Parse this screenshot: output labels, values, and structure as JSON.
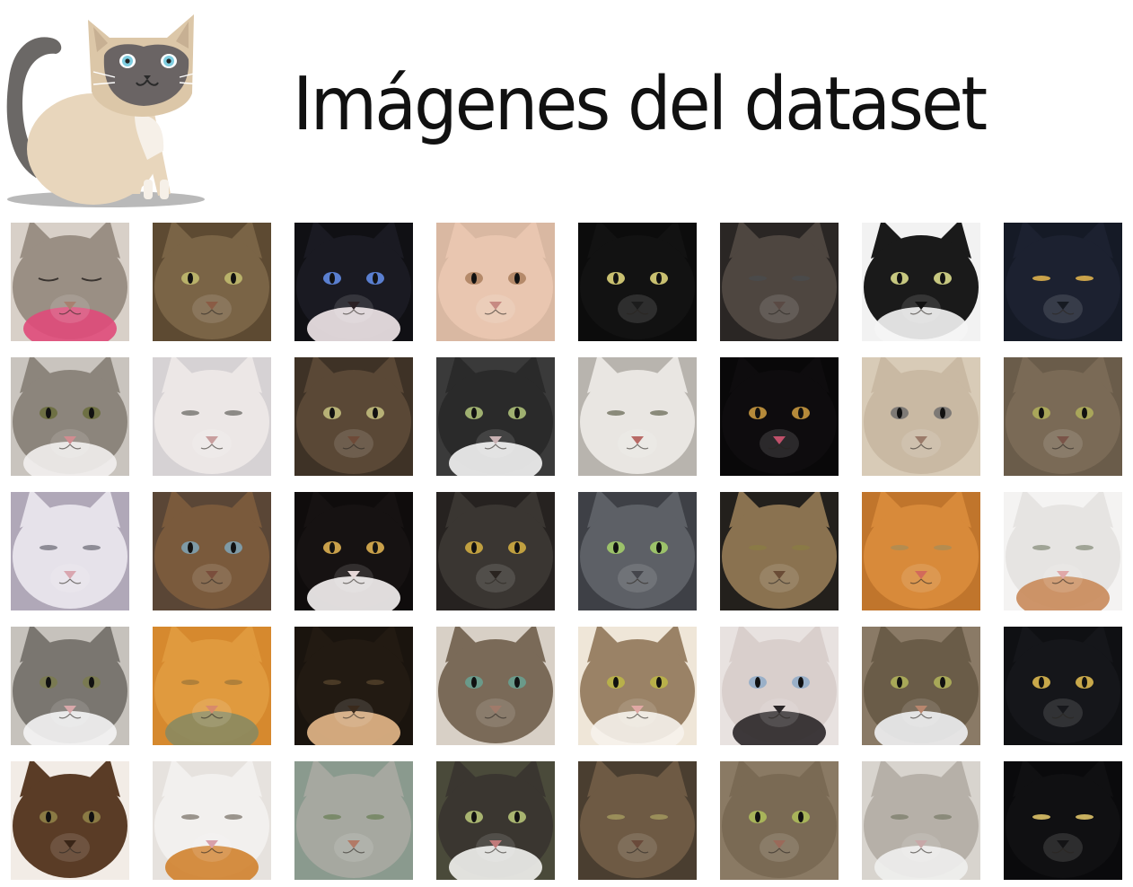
{
  "title": "Imágenes del dataset",
  "logo": {
    "icon": "siamese-cat-icon"
  },
  "grid": {
    "rows": 5,
    "columns": 8,
    "tiles": [
      {
        "fur": "#9a8f84",
        "bg": "#d8d0c8",
        "eye": "#6b6b5a",
        "nose": "#a98070",
        "eyes": "closed",
        "accent": "#e04a7a"
      },
      {
        "fur": "#7a6446",
        "bg": "#5d4a32",
        "eye": "#b9b26a",
        "nose": "#8a5c45",
        "eyes": "open",
        "accent": null
      },
      {
        "fur": "#1a1a22",
        "bg": "#101014",
        "eye": "#5a7fd0",
        "nose": "#2a2024",
        "eyes": "open",
        "accent": "#f2e8ea"
      },
      {
        "fur": "#e9c6b0",
        "bg": "#d9b8a2",
        "eye": "#b58a6a",
        "nose": "#c78a82",
        "eyes": "open",
        "accent": null
      },
      {
        "fur": "#121212",
        "bg": "#0c0c0c",
        "eye": "#c9c070",
        "nose": "#1c1c1c",
        "eyes": "open",
        "accent": null
      },
      {
        "fur": "#4e4640",
        "bg": "#2a2624",
        "eye": "#4a4a4a",
        "nose": "#5a4a44",
        "eyes": "squint",
        "accent": null
      },
      {
        "fur": "#1a1a1a",
        "bg": "#f2f2f2",
        "eye": "#c7c880",
        "nose": "#111111",
        "eyes": "open",
        "accent": "#f5f5f5"
      },
      {
        "fur": "#1c2130",
        "bg": "#151a26",
        "eye": "#c9a24a",
        "nose": "#161a22",
        "eyes": "squint",
        "accent": null
      },
      {
        "fur": "#8c857c",
        "bg": "#c9c4be",
        "eye": "#6e7044",
        "nose": "#d08c90",
        "eyes": "open",
        "accent": "#f2f0ee"
      },
      {
        "fur": "#ece7e6",
        "bg": "#d6d2d4",
        "eye": "#8c8a86",
        "nose": "#c89e9e",
        "eyes": "squint",
        "accent": null
      },
      {
        "fur": "#5a4836",
        "bg": "#3e3226",
        "eye": "#b7b176",
        "nose": "#6e4a38",
        "eyes": "open",
        "accent": null
      },
      {
        "fur": "#2a2a2a",
        "bg": "#3a3a3a",
        "eye": "#9fb070",
        "nose": "#c9b2b4",
        "eyes": "open",
        "accent": "#f4f4f4"
      },
      {
        "fur": "#e9e6e2",
        "bg": "#b8b4ae",
        "eye": "#8a8a7a",
        "nose": "#b86a66",
        "eyes": "squint",
        "accent": null
      },
      {
        "fur": "#0e0c0e",
        "bg": "#090809",
        "eye": "#b58a3a",
        "nose": "#c0506a",
        "eyes": "open",
        "accent": null
      },
      {
        "fur": "#c9b9a3",
        "bg": "#d8cbb7",
        "eye": "#7e7a76",
        "nose": "#9b7b6a",
        "eyes": "open",
        "accent": null
      },
      {
        "fur": "#7a6a56",
        "bg": "#6a5c4a",
        "eye": "#a9a65a",
        "nose": "#7a5448",
        "eyes": "open",
        "accent": null
      },
      {
        "fur": "#e6e2ea",
        "bg": "#b0a8b8",
        "eye": "#8e8c96",
        "nose": "#d9a6b0",
        "eyes": "squint",
        "accent": null
      },
      {
        "fur": "#7a5a3c",
        "bg": "#5a4636",
        "eye": "#7e9aa6",
        "nose": "#7a4e3c",
        "eyes": "open",
        "accent": null
      },
      {
        "fur": "#161212",
        "bg": "#0f0c0c",
        "eye": "#c9a04a",
        "nose": "#e6d8d8",
        "eyes": "open",
        "accent": "#f6f3f3"
      },
      {
        "fur": "#3a3632",
        "bg": "#262220",
        "eye": "#c0a040",
        "nose": "#2a2420",
        "eyes": "open",
        "accent": null
      },
      {
        "fur": "#5d6066",
        "bg": "#3e4046",
        "eye": "#9cc26a",
        "nose": "#45464c",
        "eyes": "open",
        "accent": null
      },
      {
        "fur": "#8a7250",
        "bg": "#23201c",
        "eye": "#8a7a46",
        "nose": "#6a4c36",
        "eyes": "squint",
        "accent": null
      },
      {
        "fur": "#d88a3a",
        "bg": "#c0752c",
        "eye": "#b48c50",
        "nose": "#d26a5a",
        "eyes": "squint",
        "accent": null
      },
      {
        "fur": "#e6e4e2",
        "bg": "#f4f3f2",
        "eye": "#a0a496",
        "nose": "#e0a8a8",
        "eyes": "squint",
        "accent": "#c98a5a"
      },
      {
        "fur": "#7a7670",
        "bg": "#c6c2bc",
        "eye": "#7a7a52",
        "nose": "#d8a8aa",
        "eyes": "open",
        "accent": "#f4f4f4"
      },
      {
        "fur": "#e09a3e",
        "bg": "#d6892e",
        "eye": "#b0803a",
        "nose": "#d88a6a",
        "eyes": "squint",
        "accent": "#8a8a60"
      },
      {
        "fur": "#221a12",
        "bg": "#1a140e",
        "eye": "#4a3a26",
        "nose": "#3a2a1c",
        "eyes": "squint",
        "accent": "#e6b88a"
      },
      {
        "fur": "#7a6a58",
        "bg": "#d8d0c6",
        "eye": "#6a9a8a",
        "nose": "#a07a6a",
        "eyes": "open",
        "accent": null
      },
      {
        "fur": "#9a8266",
        "bg": "#efe6d8",
        "eye": "#b8b04a",
        "nose": "#e0a8a4",
        "eyes": "open",
        "accent": "#f6f2ec"
      },
      {
        "fur": "#d9cfcc",
        "bg": "#e8e2e0",
        "eye": "#9ab0c8",
        "nose": "#2a2628",
        "eyes": "open",
        "accent": "#2a2628"
      },
      {
        "fur": "#6a5c48",
        "bg": "#8a7a66",
        "eye": "#a8a858",
        "nose": "#b8866e",
        "eyes": "open",
        "accent": "#eef0f2"
      },
      {
        "fur": "#15161a",
        "bg": "#0f1013",
        "eye": "#c8a84a",
        "nose": "#17181c",
        "eyes": "open",
        "accent": null
      },
      {
        "fur": "#5a3c26",
        "bg": "#f2ece6",
        "eye": "#8a7a44",
        "nose": "#3a2618",
        "eyes": "open",
        "accent": null
      },
      {
        "fur": "#f2f0ee",
        "bg": "#e6e2de",
        "eye": "#9a948c",
        "nose": "#d8a0aa",
        "eyes": "squint",
        "accent": "#d0822e"
      },
      {
        "fur": "#a6a8a0",
        "bg": "#8a9a8e",
        "eye": "#7a8a6a",
        "nose": "#b27a66",
        "eyes": "squint",
        "accent": null
      },
      {
        "fur": "#3a3630",
        "bg": "#4a4a3a",
        "eye": "#a8b470",
        "nose": "#c07a7a",
        "eyes": "open",
        "accent": "#f2f2f0"
      },
      {
        "fur": "#6e5a44",
        "bg": "#4a3e30",
        "eye": "#9a8e5a",
        "nose": "#6a4a3a",
        "eyes": "squint",
        "accent": null
      },
      {
        "fur": "#7a6a54",
        "bg": "#8a7a64",
        "eye": "#a8b45a",
        "nose": "#9a6a5a",
        "eyes": "open",
        "accent": null
      },
      {
        "fur": "#b6b0a8",
        "bg": "#d8d4ce",
        "eye": "#8a8a7a",
        "nose": "#c8a8a8",
        "eyes": "squint",
        "accent": "#f0efee"
      },
      {
        "fur": "#101012",
        "bg": "#0a0a0c",
        "eye": "#c8b060",
        "nose": "#141416",
        "eyes": "squint",
        "accent": null
      }
    ]
  }
}
